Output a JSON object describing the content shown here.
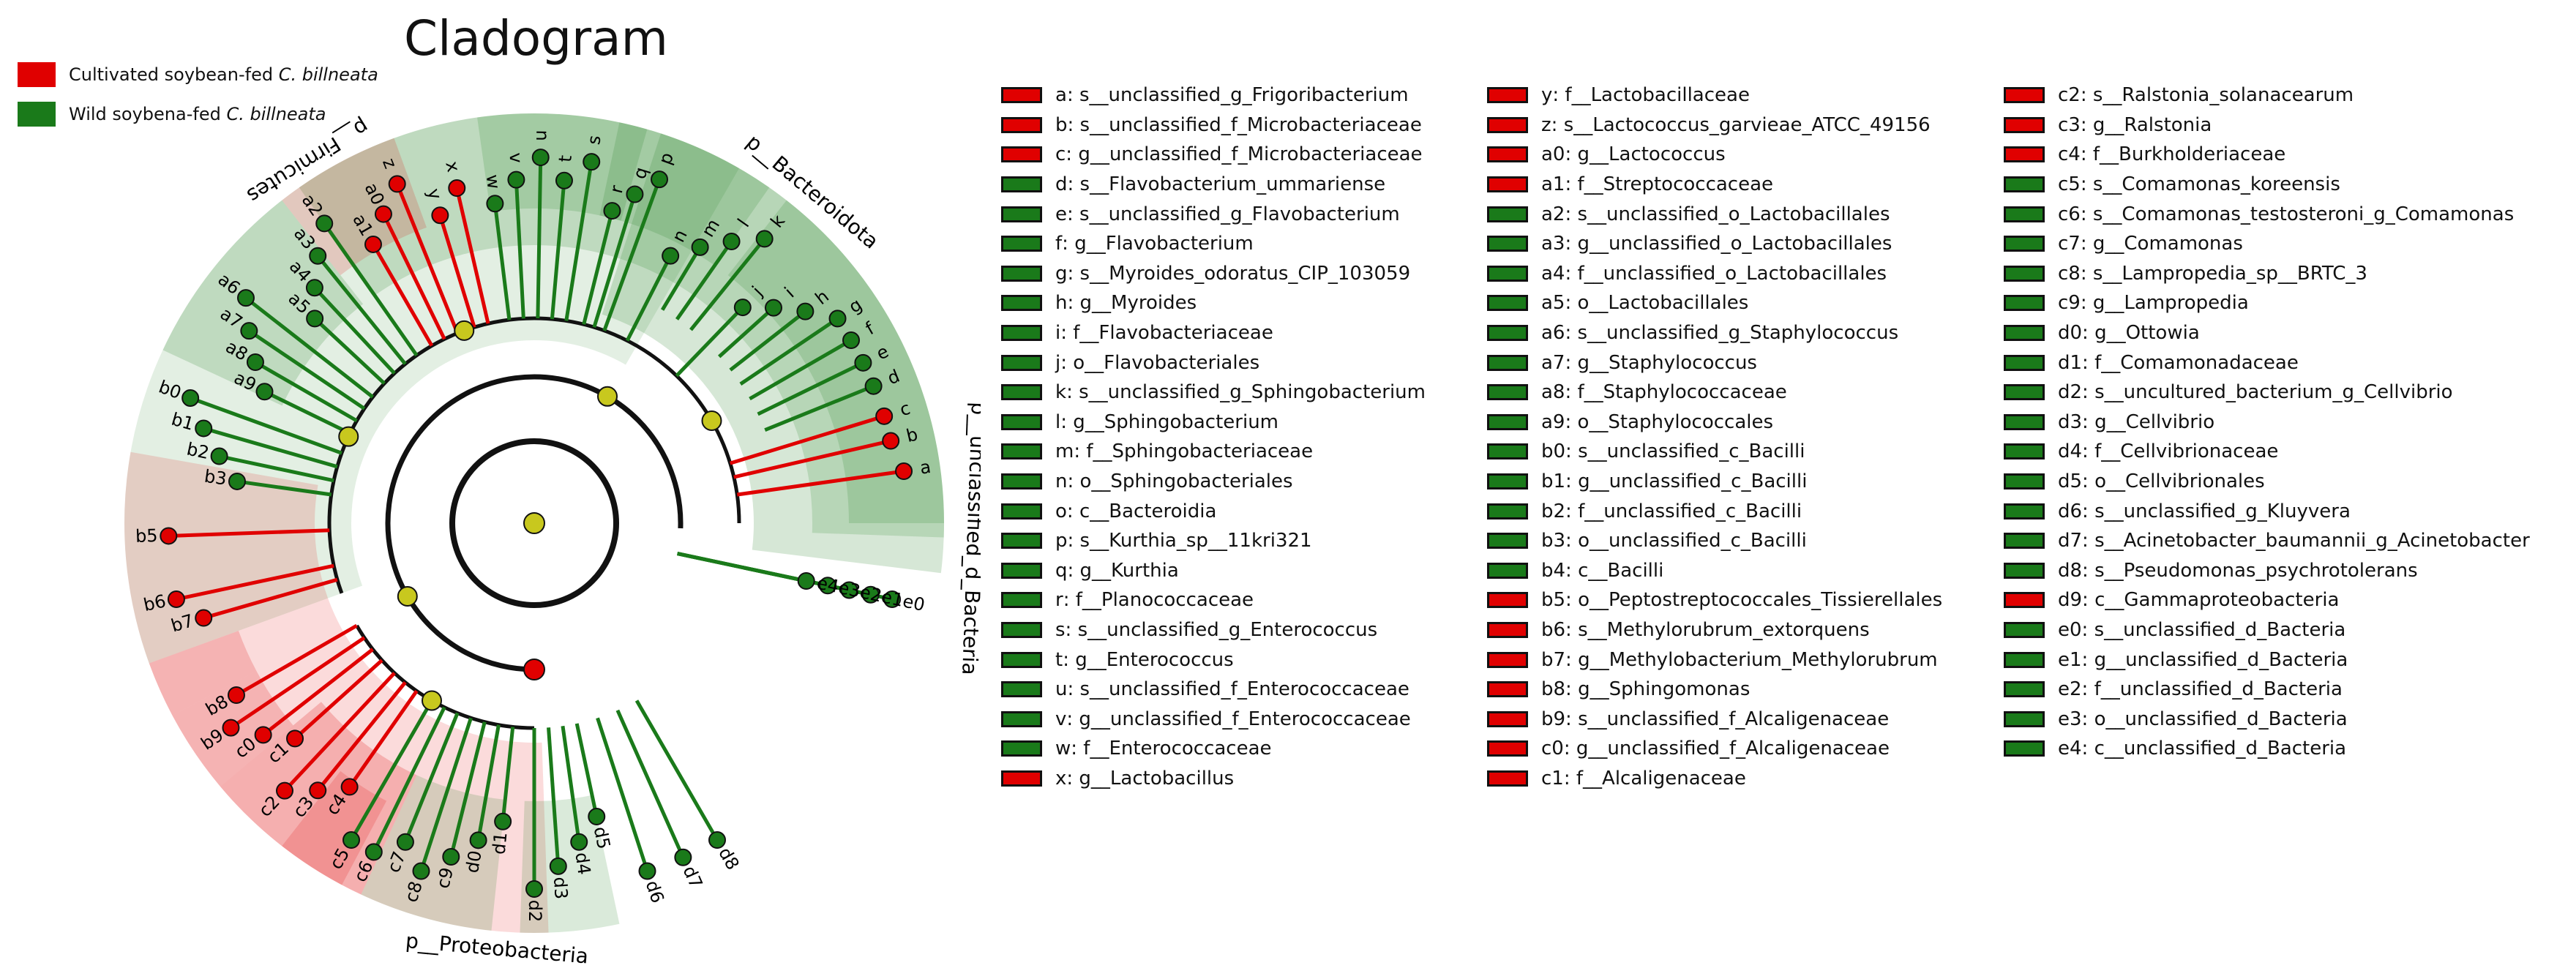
{
  "title": "Cladogram",
  "colors": {
    "cultivated": "#e00000",
    "wild": "#1a7a1a",
    "neutral": "#c8c81e",
    "edge": "#111111"
  },
  "group_legend": [
    {
      "label_prefix": "Cultivated soybean-fed ",
      "label_italic": "C. billneata",
      "color": "#e00000"
    },
    {
      "label_prefix": "Wild soybena-fed ",
      "label_italic": "C. billneata",
      "color": "#1a7a1a"
    }
  ],
  "clade_labels": {
    "firmicutes": "p__Firmicutes",
    "bacteroidota": "p__Bacteroidota",
    "proteobacteria": "p__Proteobacteria",
    "unclassified_bacteria": "p__unclassified_d_Bacteria"
  },
  "taxa": [
    {
      "code": "a",
      "name": "s__unclassified_g_Frigoribacterium",
      "group": "cultivated"
    },
    {
      "code": "b",
      "name": "s__unclassified_f_Microbacteriaceae",
      "group": "cultivated"
    },
    {
      "code": "c",
      "name": "g__unclassified_f_Microbacteriaceae",
      "group": "cultivated"
    },
    {
      "code": "d",
      "name": "s__Flavobacterium_ummariense",
      "group": "wild"
    },
    {
      "code": "e",
      "name": "s__unclassified_g_Flavobacterium",
      "group": "wild"
    },
    {
      "code": "f",
      "name": "g__Flavobacterium",
      "group": "wild"
    },
    {
      "code": "g",
      "name": "s__Myroides_odoratus_CIP_103059",
      "group": "wild"
    },
    {
      "code": "h",
      "name": "g__Myroides",
      "group": "wild"
    },
    {
      "code": "i",
      "name": "f__Flavobacteriaceae",
      "group": "wild"
    },
    {
      "code": "j",
      "name": "o__Flavobacteriales",
      "group": "wild"
    },
    {
      "code": "k",
      "name": "s__unclassified_g_Sphingobacterium",
      "group": "wild"
    },
    {
      "code": "l",
      "name": "g__Sphingobacterium",
      "group": "wild"
    },
    {
      "code": "m",
      "name": "f__Sphingobacteriaceae",
      "group": "wild"
    },
    {
      "code": "n",
      "name": "o__Sphingobacteriales",
      "group": "wild"
    },
    {
      "code": "o",
      "name": "c__Bacteroidia",
      "group": "wild"
    },
    {
      "code": "p",
      "name": "s__Kurthia_sp__11kri321",
      "group": "wild"
    },
    {
      "code": "q",
      "name": "g__Kurthia",
      "group": "wild"
    },
    {
      "code": "r",
      "name": "f__Planococcaceae",
      "group": "wild"
    },
    {
      "code": "s",
      "name": "s__unclassified_g_Enterococcus",
      "group": "wild"
    },
    {
      "code": "t",
      "name": "g__Enterococcus",
      "group": "wild"
    },
    {
      "code": "u",
      "name": "s__unclassified_f_Enterococcaceae",
      "group": "wild"
    },
    {
      "code": "v",
      "name": "g__unclassified_f_Enterococcaceae",
      "group": "wild"
    },
    {
      "code": "w",
      "name": "f__Enterococcaceae",
      "group": "wild"
    },
    {
      "code": "x",
      "name": "g__Lactobacillus",
      "group": "cultivated"
    },
    {
      "code": "y",
      "name": "f__Lactobacillaceae",
      "group": "cultivated"
    },
    {
      "code": "z",
      "name": "s__Lactococcus_garvieae_ATCC_49156",
      "group": "cultivated"
    },
    {
      "code": "a0",
      "name": "g__Lactococcus",
      "group": "cultivated"
    },
    {
      "code": "a1",
      "name": "f__Streptococcaceae",
      "group": "cultivated"
    },
    {
      "code": "a2",
      "name": "s__unclassified_o_Lactobacillales",
      "group": "wild"
    },
    {
      "code": "a3",
      "name": "g__unclassified_o_Lactobacillales",
      "group": "wild"
    },
    {
      "code": "a4",
      "name": "f__unclassified_o_Lactobacillales",
      "group": "wild"
    },
    {
      "code": "a5",
      "name": "o__Lactobacillales",
      "group": "wild"
    },
    {
      "code": "a6",
      "name": "s__unclassified_g_Staphylococcus",
      "group": "wild"
    },
    {
      "code": "a7",
      "name": "g__Staphylococcus",
      "group": "wild"
    },
    {
      "code": "a8",
      "name": "f__Staphylococcaceae",
      "group": "wild"
    },
    {
      "code": "a9",
      "name": "o__Staphylococcales",
      "group": "wild"
    },
    {
      "code": "b0",
      "name": "s__unclassified_c_Bacilli",
      "group": "wild"
    },
    {
      "code": "b1",
      "name": "g__unclassified_c_Bacilli",
      "group": "wild"
    },
    {
      "code": "b2",
      "name": "f__unclassified_c_Bacilli",
      "group": "wild"
    },
    {
      "code": "b3",
      "name": "o__unclassified_c_Bacilli",
      "group": "wild"
    },
    {
      "code": "b4",
      "name": "c__Bacilli",
      "group": "wild"
    },
    {
      "code": "b5",
      "name": "o__Peptostreptococcales_Tissierellales",
      "group": "cultivated"
    },
    {
      "code": "b6",
      "name": "s__Methylorubrum_extorquens",
      "group": "cultivated"
    },
    {
      "code": "b7",
      "name": "g__Methylobacterium_Methylorubrum",
      "group": "cultivated"
    },
    {
      "code": "b8",
      "name": "g__Sphingomonas",
      "group": "cultivated"
    },
    {
      "code": "b9",
      "name": "s__unclassified_f_Alcaligenaceae",
      "group": "cultivated"
    },
    {
      "code": "c0",
      "name": "g__unclassified_f_Alcaligenaceae",
      "group": "cultivated"
    },
    {
      "code": "c1",
      "name": "f__Alcaligenaceae",
      "group": "cultivated"
    },
    {
      "code": "c2",
      "name": "s__Ralstonia_solanacearum",
      "group": "cultivated"
    },
    {
      "code": "c3",
      "name": "g__Ralstonia",
      "group": "cultivated"
    },
    {
      "code": "c4",
      "name": "f__Burkholderiaceae",
      "group": "cultivated"
    },
    {
      "code": "c5",
      "name": "s__Comamonas_koreensis",
      "group": "wild"
    },
    {
      "code": "c6",
      "name": "s__Comamonas_testosteroni_g_Comamonas",
      "group": "wild"
    },
    {
      "code": "c7",
      "name": "g__Comamonas",
      "group": "wild"
    },
    {
      "code": "c8",
      "name": "s__Lampropedia_sp__BRTC_3",
      "group": "wild"
    },
    {
      "code": "c9",
      "name": "g__Lampropedia",
      "group": "wild"
    },
    {
      "code": "d0",
      "name": "g__Ottowia",
      "group": "wild"
    },
    {
      "code": "d1",
      "name": "f__Comamonadaceae",
      "group": "wild"
    },
    {
      "code": "d2",
      "name": "s__uncultured_bacterium_g_Cellvibrio",
      "group": "wild"
    },
    {
      "code": "d3",
      "name": "g__Cellvibrio",
      "group": "wild"
    },
    {
      "code": "d4",
      "name": "f__Cellvibrionaceae",
      "group": "wild"
    },
    {
      "code": "d5",
      "name": "o__Cellvibrionales",
      "group": "wild"
    },
    {
      "code": "d6",
      "name": "s__unclassified_g_Kluyvera",
      "group": "wild"
    },
    {
      "code": "d7",
      "name": "s__Acinetobacter_baumannii_g_Acinetobacter",
      "group": "wild"
    },
    {
      "code": "d8",
      "name": "s__Pseudomonas_psychrotolerans",
      "group": "wild"
    },
    {
      "code": "d9",
      "name": "c__Gammaproteobacteria",
      "group": "cultivated"
    },
    {
      "code": "e0",
      "name": "s__unclassified_d_Bacteria",
      "group": "wild"
    },
    {
      "code": "e1",
      "name": "g__unclassified_d_Bacteria",
      "group": "wild"
    },
    {
      "code": "e2",
      "name": "f__unclassified_d_Bacteria",
      "group": "wild"
    },
    {
      "code": "e3",
      "name": "o__unclassified_d_Bacteria",
      "group": "wild"
    },
    {
      "code": "e4",
      "name": "c__unclassified_d_Bacteria",
      "group": "wild"
    }
  ]
}
